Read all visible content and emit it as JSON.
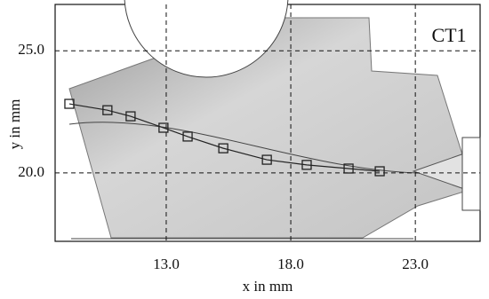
{
  "chart_data": {
    "type": "line",
    "annotation": "CT1",
    "x_label": "x in mm",
    "y_label": "y in mm",
    "x": [
      9.11,
      10.64,
      11.57,
      12.89,
      13.86,
      15.29,
      17.04,
      18.64,
      20.32,
      21.57
    ],
    "series": [
      {
        "color": "#222222",
        "values": [
          22.83,
          22.57,
          22.32,
          21.85,
          21.49,
          21.01,
          20.54,
          20.33,
          20.18,
          20.07
        ]
      }
    ],
    "xlim": [
      8.54,
      25.6
    ],
    "ylim": [
      17.2,
      26.9
    ],
    "xticks": [
      {
        "value": 13,
        "label": "13.0"
      },
      {
        "value": 18,
        "label": "18.0"
      },
      {
        "value": 23,
        "label": "23.0"
      }
    ],
    "yticks": [
      {
        "value": 20,
        "label": "20.0"
      },
      {
        "value": 25,
        "label": "25.0"
      }
    ],
    "grid": true
  }
}
